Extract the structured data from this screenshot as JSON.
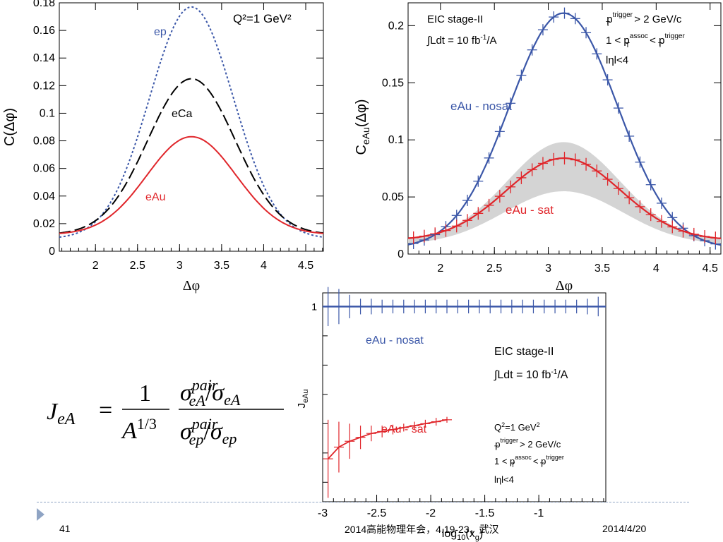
{
  "chart_data": [
    {
      "type": "line",
      "xlabel": "Δφ",
      "ylabel": "C(Δφ)",
      "xlim": [
        1.57,
        4.71
      ],
      "ylim": [
        0,
        0.18
      ],
      "x_ticks": [
        "2",
        "2.5",
        "3",
        "3.5",
        "4",
        "4.5"
      ],
      "y_ticks": [
        "0",
        "0.02",
        "0.04",
        "0.06",
        "0.08",
        "0.1",
        "0.12",
        "0.14",
        "0.16",
        "0.18"
      ],
      "annotation": "Q²=1 GeV²",
      "series": [
        {
          "name": "ep",
          "style": "dotted",
          "color": "#3b57a8",
          "model": {
            "base": 0.009,
            "amp": 0.168,
            "sigma": 0.5
          }
        },
        {
          "name": "eCa",
          "style": "dashed",
          "color": "#000000",
          "model": {
            "base": 0.012,
            "amp": 0.113,
            "sigma": 0.52
          }
        },
        {
          "name": "eAu",
          "style": "solid",
          "color": "#e0262b",
          "model": {
            "base": 0.012,
            "amp": 0.071,
            "sigma": 0.53
          }
        }
      ],
      "series_label_colors": {
        "ep": "#3b57a8",
        "eCa": "#000000",
        "eAu": "#e0262b"
      }
    },
    {
      "type": "line",
      "xlabel": "Δφ",
      "ylabel": "C_eAu(Δφ)",
      "xlim": [
        1.7,
        4.6
      ],
      "ylim": [
        0,
        0.22
      ],
      "x_ticks": [
        "2",
        "2.5",
        "3",
        "3.5",
        "4",
        "4.5"
      ],
      "y_ticks": [
        "0",
        "0.05",
        "0.1",
        "0.15",
        "0.2"
      ],
      "annotations": {
        "stage": "EIC stage-II",
        "lumi_pre": "∫Ldt = 10 fb",
        "lumi_sup": "-1",
        "lumi_post": "/A",
        "cut1_pre": "p",
        "cut1_sup": "trigger",
        "cut1_sub": "T",
        "cut1_post": " > 2 GeV/c",
        "cut2_pre": "1 < p",
        "cut2_sup": "assoc",
        "cut2_sub": "T",
        "cut2_mid": " < p",
        "cut2_sup2": "trigger",
        "cut2_sub2": "T",
        "cut3": "lηl<4"
      },
      "series": [
        {
          "name": "eAu - nosat",
          "color": "#3b57a8",
          "model": {
            "base": 0.005,
            "amp": 0.206,
            "sigma": 0.5
          }
        },
        {
          "name": "eAu - sat",
          "color": "#e0262b",
          "model": {
            "base": 0.012,
            "amp": 0.072,
            "sigma": 0.53
          },
          "band_upper": {
            "base": 0.012,
            "amp": 0.086,
            "sigma": 0.52
          },
          "band_lower": {
            "base": 0.008,
            "amp": 0.047,
            "sigma": 0.55
          }
        }
      ]
    },
    {
      "type": "line",
      "xlabel": "log10(xg)",
      "ylabel": "JeAu",
      "xlim": [
        -3.0,
        -0.38
      ],
      "ylim": [
        0,
        1.07
      ],
      "x_ticks": [
        "-3",
        "-2.5",
        "-2",
        "-1.5",
        "-1"
      ],
      "y_ticks": [
        "1"
      ],
      "annotations": {
        "stage": "EIC stage-II",
        "lumi_pre": "∫Ldt = 10 fb",
        "lumi_sup": "-1",
        "lumi_post": "/A",
        "q2_pre": "Q",
        "q2_sup": "2",
        "q2_post": "=1 GeV",
        "q2_sup2": "2",
        "cut1_pre": "p",
        "cut1_sup": "trigger",
        "cut1_sub": "T",
        "cut1_post": " > 2 GeV/c",
        "cut2_pre": "1 < p",
        "cut2_sup": "assoc",
        "cut2_sub": "T",
        "cut2_mid": " < p",
        "cut2_sup2": "trigger",
        "cut2_sub2": "T",
        "cut3": "lηl<4"
      },
      "series": [
        {
          "name": "eAu - nosat",
          "color": "#3b57a8",
          "x": [
            -2.95,
            -2.85,
            -2.75,
            -2.65,
            -2.55,
            -2.45,
            -2.35,
            -2.25,
            -2.15,
            -2.05,
            -1.95,
            -1.85,
            -1.75,
            -1.65,
            -1.55,
            -1.45,
            -1.35,
            -1.25,
            -1.15,
            -1.05,
            -0.95,
            -0.85,
            -0.75,
            -0.65,
            -0.55,
            -0.45
          ],
          "y": [
            1,
            1,
            1,
            1,
            1,
            1,
            1,
            1,
            1,
            1,
            1,
            1,
            1,
            1,
            1,
            1,
            1,
            1,
            1,
            1,
            1,
            1,
            1,
            1,
            1,
            1
          ],
          "err": [
            0.1,
            0.09,
            0.06,
            0.04,
            0.04,
            0.035,
            0.035,
            0.035,
            0.035,
            0.035,
            0.035,
            0.035,
            0.035,
            0.035,
            0.035,
            0.035,
            0.035,
            0.035,
            0.035,
            0.035,
            0.035,
            0.035,
            0.035,
            0.035,
            0.04,
            0.05
          ]
        },
        {
          "name": "eAu - sat",
          "color": "#e0262b",
          "x": [
            -2.95,
            -2.85,
            -2.75,
            -2.65,
            -2.55,
            -2.45,
            -2.35,
            -2.25,
            -2.15,
            -2.05,
            -1.95,
            -1.85
          ],
          "y": [
            0.22,
            0.28,
            0.31,
            0.33,
            0.35,
            0.36,
            0.37,
            0.38,
            0.39,
            0.4,
            0.41,
            0.42
          ],
          "err": [
            0.2,
            0.13,
            0.09,
            0.06,
            0.04,
            0.03,
            0.025,
            0.02,
            0.02,
            0.02,
            0.02,
            0.015
          ]
        }
      ]
    }
  ],
  "formula": {
    "lhs": "J",
    "lhs_sub": "eA",
    "eq": "=",
    "one": "1",
    "den_base": "A",
    "den_sup": "1/3",
    "sigma": "σ",
    "pair": "pair",
    "ea": "eA",
    "ep": "ep",
    "slash": "/"
  },
  "footer": {
    "slide_number": "41",
    "conference": "2014高能物理年会，4.19-23，武汉",
    "date": "2014/4/20"
  }
}
